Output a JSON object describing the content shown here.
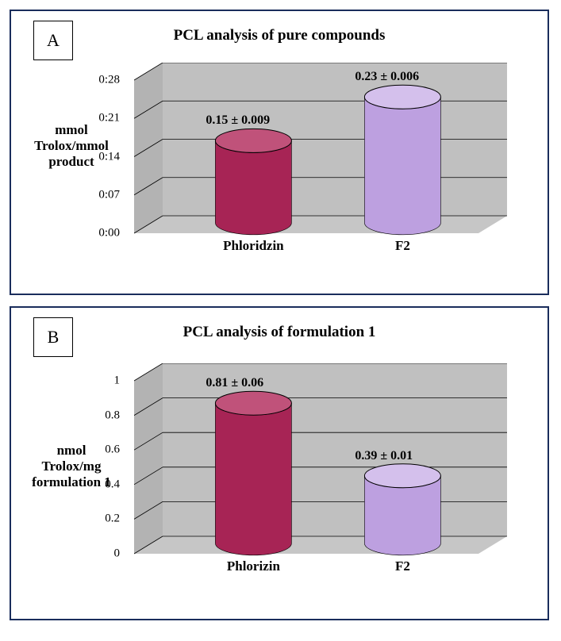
{
  "panelA": {
    "letter": "A",
    "title": "PCL analysis of pure compounds",
    "title_fontsize": 19,
    "type": "bar3d",
    "ylabel_lines": [
      "mmol",
      "Trolox/mmol",
      "product"
    ],
    "ylabel_fontsize": 17,
    "ylim": [
      0,
      0.28
    ],
    "ytick_step": 0.07,
    "yticks": [
      "0:00",
      "0:07",
      "0:14",
      "0:21",
      "0:28"
    ],
    "categories": [
      "Phloridzin",
      "F2"
    ],
    "values": [
      0.15,
      0.23
    ],
    "bar_labels": [
      "0.15 ± 0.009",
      "0.23 ± 0.006"
    ],
    "bar_colors": [
      "#a72455",
      "#bda0e0"
    ],
    "bar_side_colors": [
      "#7a1a3e",
      "#9a82b8"
    ],
    "bar_top_colors": [
      "#c0527a",
      "#d4c0ec"
    ],
    "wall_color": "#c0c0c0",
    "floor_color": "#c0c0c0",
    "grid_color": "#000000"
  },
  "panelB": {
    "letter": "B",
    "title": "PCL analysis of formulation 1",
    "title_fontsize": 19,
    "type": "bar3d",
    "ylabel_lines": [
      "nmol",
      "Trolox/mg",
      "formulation 1"
    ],
    "ylabel_fontsize": 17,
    "ylim": [
      0,
      1.0
    ],
    "ytick_step": 0.2,
    "yticks": [
      "0",
      "0.2",
      "0.4",
      "0.6",
      "0.8",
      "1"
    ],
    "categories": [
      "Phlorizin",
      "F2"
    ],
    "values": [
      0.81,
      0.39
    ],
    "bar_labels": [
      "0.81 ± 0.06",
      "0.39 ± 0.01"
    ],
    "bar_colors": [
      "#a72455",
      "#bda0e0"
    ],
    "bar_side_colors": [
      "#7a1a3e",
      "#9a82b8"
    ],
    "bar_top_colors": [
      "#c0527a",
      "#d4c0ec"
    ],
    "wall_color": "#c0c0c0",
    "floor_color": "#c0c0c0",
    "grid_color": "#000000"
  }
}
